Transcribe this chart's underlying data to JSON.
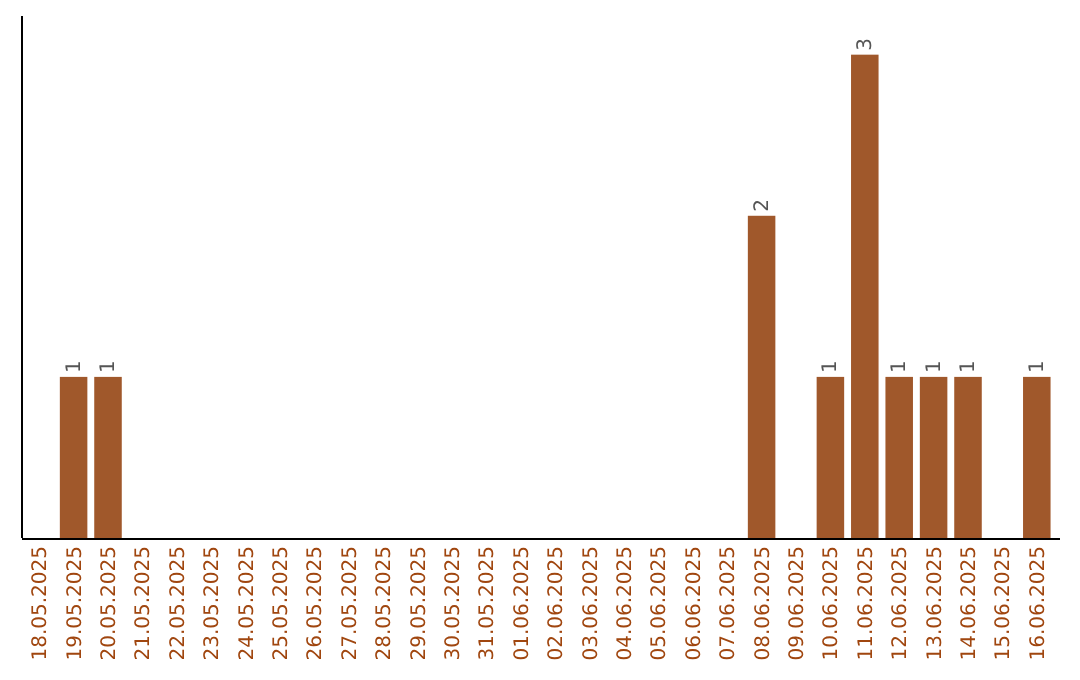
{
  "chart_data": {
    "type": "bar",
    "categories": [
      "18.05.2025",
      "19.05.2025",
      "20.05.2025",
      "21.05.2025",
      "22.05.2025",
      "23.05.2025",
      "24.05.2025",
      "25.05.2025",
      "26.05.2025",
      "27.05.2025",
      "28.05.2025",
      "29.05.2025",
      "30.05.2025",
      "31.05.2025",
      "01.06.2025",
      "02.06.2025",
      "03.06.2025",
      "04.06.2025",
      "05.06.2025",
      "06.06.2025",
      "07.06.2025",
      "08.06.2025",
      "09.06.2025",
      "10.06.2025",
      "11.06.2025",
      "12.06.2025",
      "13.06.2025",
      "14.06.2025",
      "15.06.2025",
      "16.06.2025"
    ],
    "values": [
      0,
      1,
      1,
      0,
      0,
      0,
      0,
      0,
      0,
      0,
      0,
      0,
      0,
      0,
      0,
      0,
      0,
      0,
      0,
      0,
      0,
      2,
      0,
      1,
      3,
      1,
      1,
      1,
      0,
      1
    ],
    "value_labels": [
      null,
      "1",
      "1",
      null,
      null,
      null,
      null,
      null,
      null,
      null,
      null,
      null,
      null,
      null,
      null,
      null,
      null,
      null,
      null,
      null,
      null,
      "2",
      null,
      "1",
      "3",
      "1",
      "1",
      "1",
      null,
      "1"
    ],
    "color": "#a0582b"
  }
}
